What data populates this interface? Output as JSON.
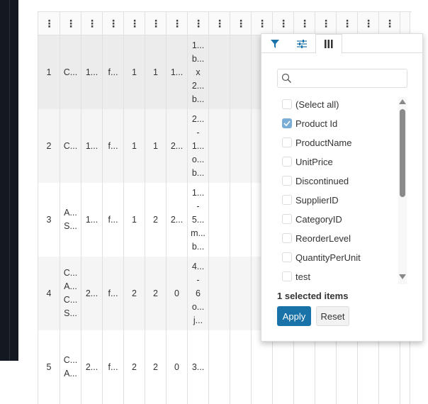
{
  "grid": {
    "header_menus": 18,
    "rows": [
      {
        "cells": [
          [
            "1"
          ],
          [
            "C..."
          ],
          [
            "1..."
          ],
          [
            "f..."
          ],
          [
            "1"
          ],
          [
            "1"
          ],
          [
            "1..."
          ],
          [
            "1...",
            "b...",
            "x",
            "2...",
            "b..."
          ]
        ],
        "bg": "#ececec"
      },
      {
        "cells": [
          [
            "2"
          ],
          [
            "C..."
          ],
          [
            "1..."
          ],
          [
            "f..."
          ],
          [
            "1"
          ],
          [
            "1"
          ],
          [
            "2..."
          ],
          [
            "2...",
            "-",
            "1...",
            "o...",
            "b..."
          ]
        ],
        "bg": "#f5f5f5"
      },
      {
        "cells": [
          [
            "3"
          ],
          [
            "A...",
            "S..."
          ],
          [
            "1..."
          ],
          [
            "f..."
          ],
          [
            "1"
          ],
          [
            "2"
          ],
          [
            "2..."
          ],
          [
            "1...",
            "-",
            "5...",
            "m...",
            "b..."
          ]
        ],
        "bg": "#ffffff"
      },
      {
        "cells": [
          [
            "4"
          ],
          [
            "C...",
            "A...",
            "C...",
            "S..."
          ],
          [
            "2..."
          ],
          [
            "f..."
          ],
          [
            "2"
          ],
          [
            "2"
          ],
          [
            "0"
          ],
          [
            "4...",
            "-",
            "6",
            "o...",
            "j..."
          ]
        ],
        "bg": "#f5f5f5"
      },
      {
        "cells": [
          [
            "5"
          ],
          [
            "C...",
            "A..."
          ],
          [
            "2..."
          ],
          [
            "f..."
          ],
          [
            "2"
          ],
          [
            "2"
          ],
          [
            "0"
          ],
          [
            "3..."
          ]
        ],
        "bg": "#ffffff"
      }
    ]
  },
  "popup": {
    "tabs": [
      {
        "icon": "filter-icon"
      },
      {
        "icon": "sliders-icon"
      },
      {
        "icon": "columns-icon",
        "active": true
      }
    ],
    "search_placeholder": "",
    "items": [
      {
        "label": "(Select all)",
        "checked": false
      },
      {
        "label": "Product Id",
        "checked": true
      },
      {
        "label": "ProductName",
        "checked": false
      },
      {
        "label": "UnitPrice",
        "checked": false
      },
      {
        "label": "Discontinued",
        "checked": false
      },
      {
        "label": "SupplierID",
        "checked": false
      },
      {
        "label": "CategoryID",
        "checked": false
      },
      {
        "label": "ReorderLevel",
        "checked": false
      },
      {
        "label": "QuantityPerUnit",
        "checked": false
      },
      {
        "label": "test",
        "checked": false
      }
    ],
    "selected_text": "1 selected items",
    "apply_label": "Apply",
    "reset_label": "Reset"
  },
  "colors": {
    "accent": "#1a73a8",
    "checked": "#7aaed6",
    "sidebar": "#141820"
  }
}
